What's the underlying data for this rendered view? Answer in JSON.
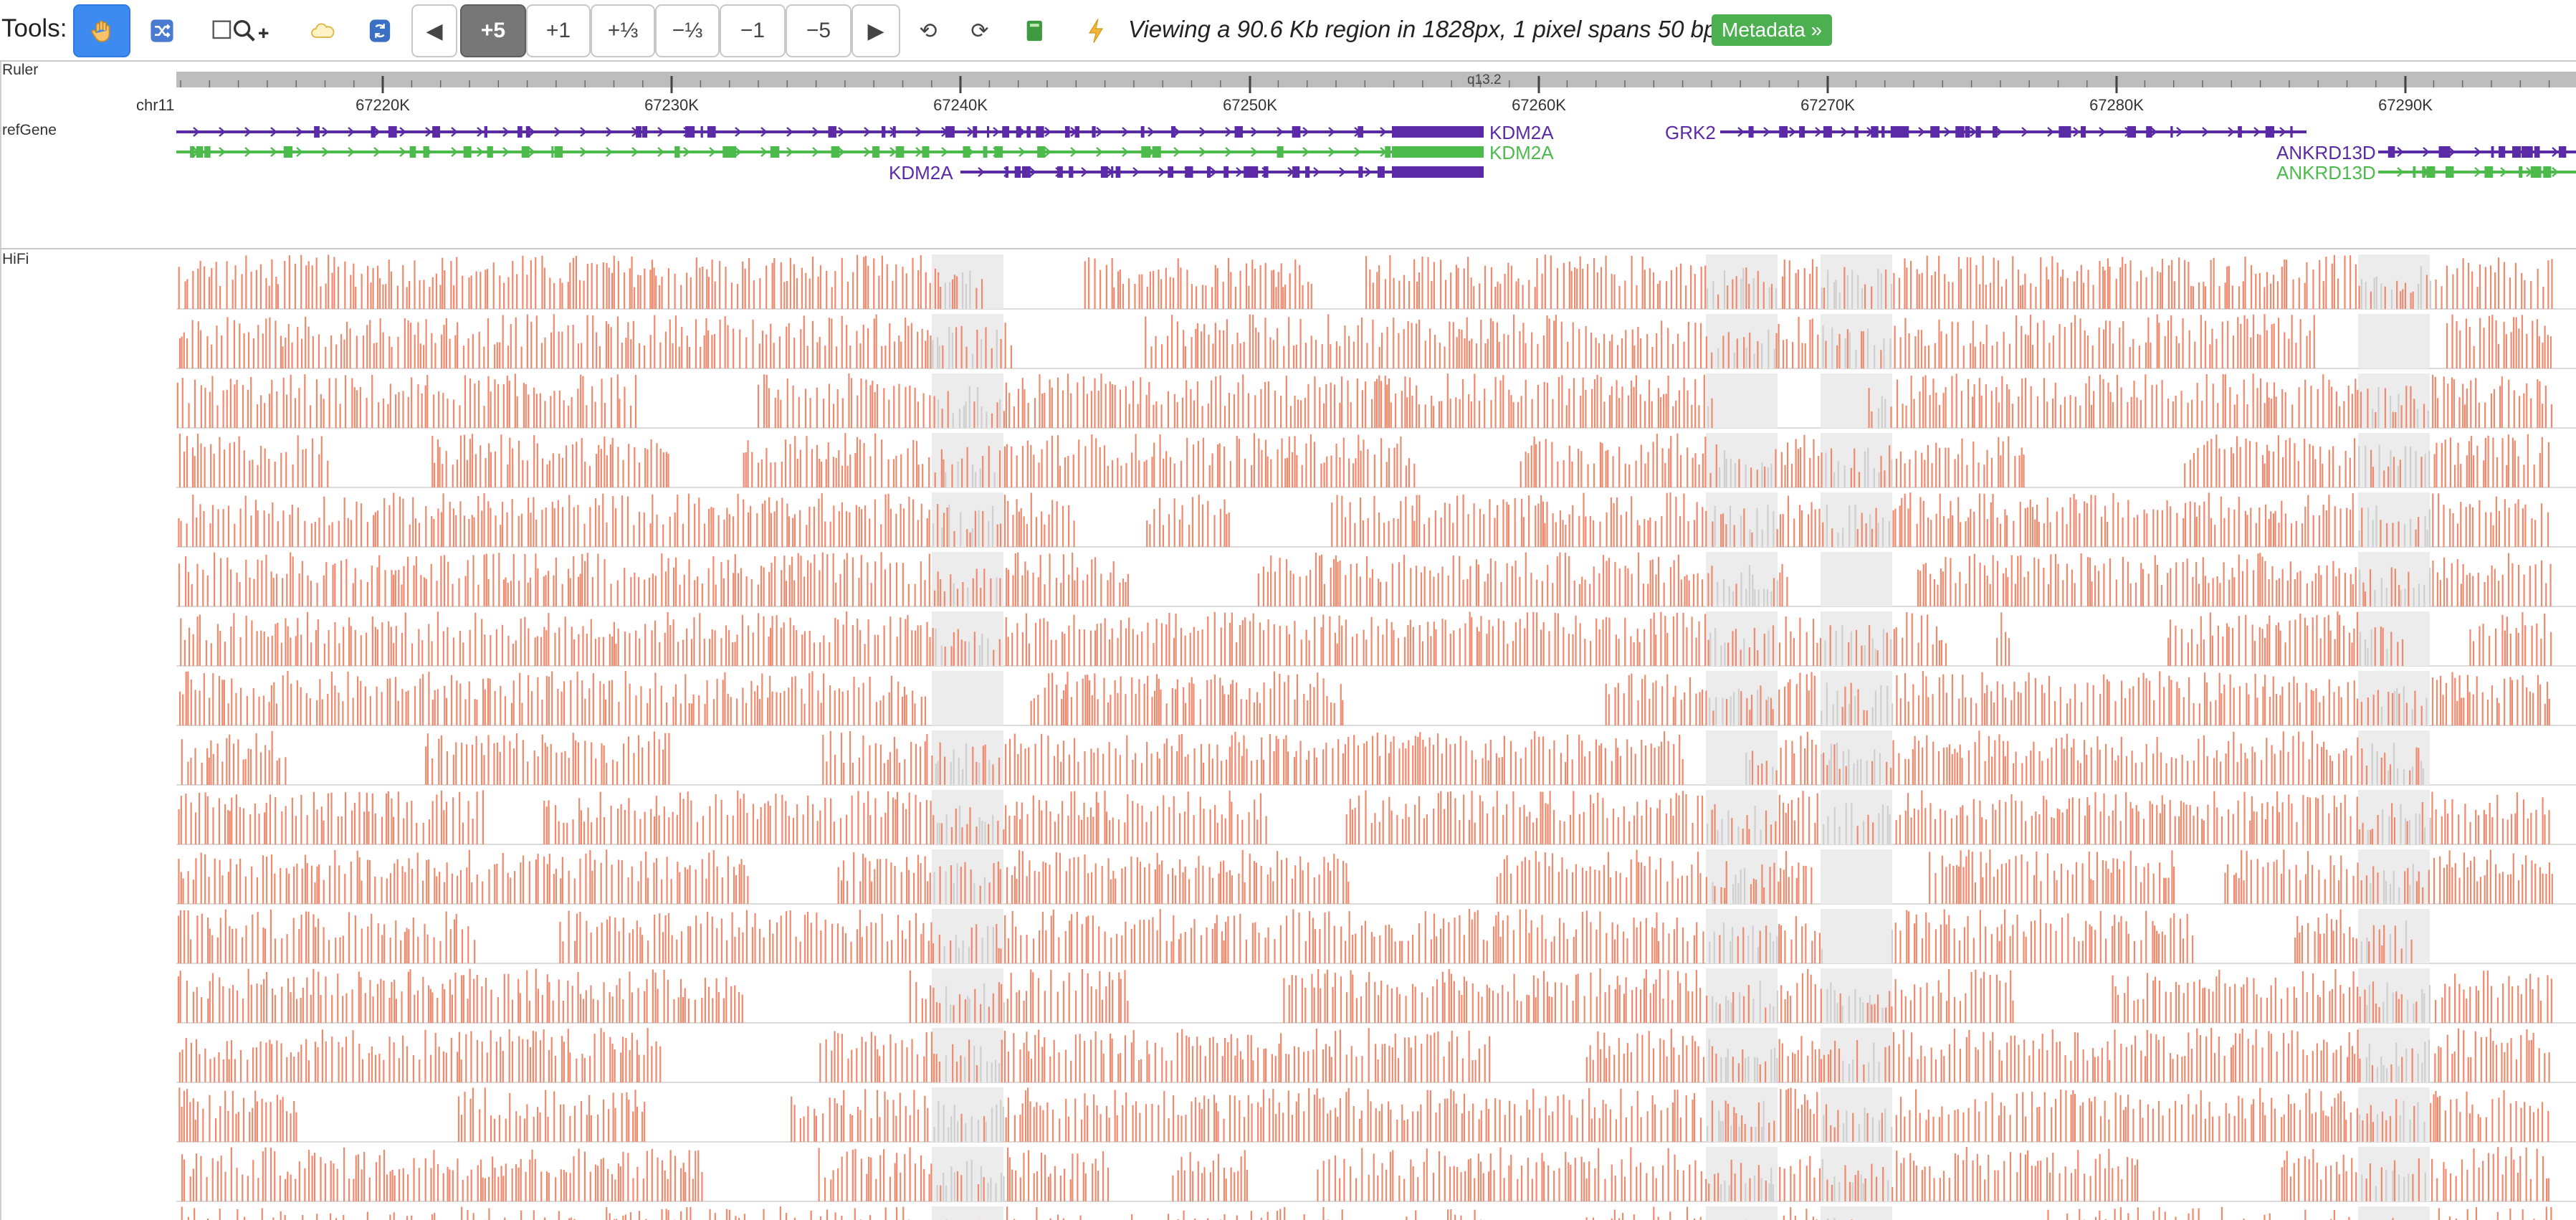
{
  "toolbar": {
    "tools_label": "Tools:",
    "icons": [
      "hand-pan-icon",
      "shuffle-icon",
      "region-zoom-icon",
      "cloud-icon",
      "circle-arrows-icon",
      "book-icon",
      "lightning-icon"
    ],
    "nav_left": "◀",
    "zoom_in_5": "+5",
    "zoom_in_1": "+1",
    "zoom_in_third": "+⅓",
    "zoom_out_third": "−⅓",
    "zoom_out_1": "−1",
    "zoom_out_5": "−5",
    "nav_right": "▶",
    "undo": "⟲",
    "redo": "⟳",
    "viewing_text": "Viewing a 90.6 Kb region in 1828px, 1 pixel spans 50 bp",
    "metadata_button": "Metadata »"
  },
  "tracks": {
    "ruler_label": "Ruler",
    "refgene_label": "refGene",
    "hifi_label": "HiFi"
  },
  "ruler": {
    "chrom": "chr11",
    "band": "q13.2",
    "ticks": [
      "67220K",
      "67230K",
      "67240K",
      "67250K",
      "67260K",
      "67270K",
      "67280K",
      "67290K"
    ]
  },
  "genes": {
    "kdm2a_purple": "KDM2A",
    "kdm2a_green": "KDM2A",
    "kdm2a_left": "KDM2A",
    "grk2": "GRK2",
    "ankrd13d_purple": "ANKRD13D",
    "ankrd13d_green": "ANKRD13D"
  },
  "colors": {
    "accent_blue": "#3d8bf0",
    "gene_purple": "#5b2aa6",
    "gene_green": "#4cbb4c",
    "read_salmon": "#ee8a6e",
    "metadata_green": "#4caf50"
  }
}
